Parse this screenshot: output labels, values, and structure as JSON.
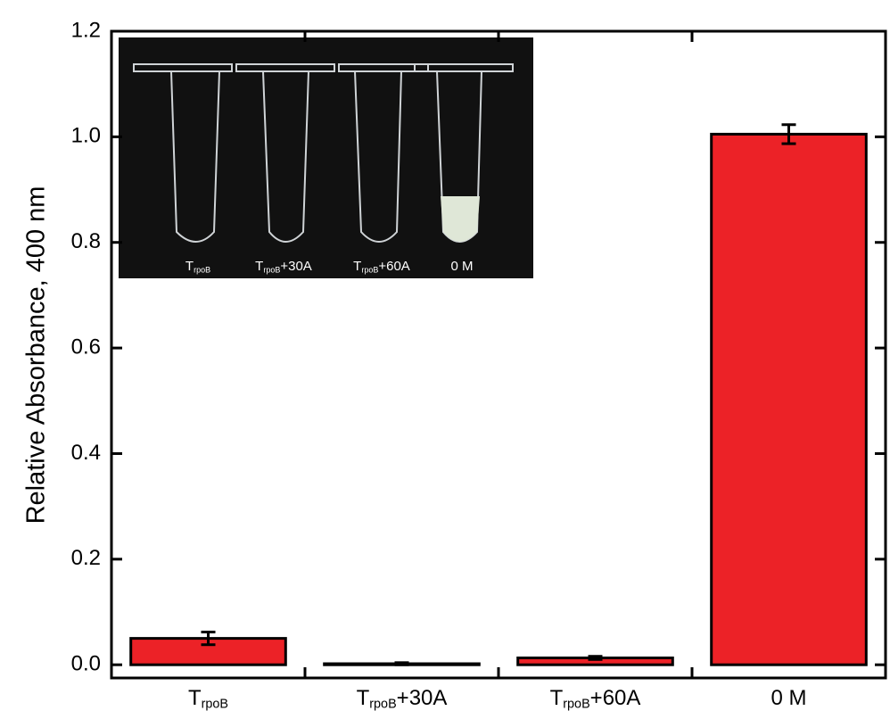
{
  "chart_data": {
    "type": "bar",
    "y_label": "Relative Absorbance, 400 nm",
    "categories": [
      [
        "T",
        "rpoB"
      ],
      [
        "T",
        "rpoB",
        "+30A"
      ],
      [
        "T",
        "rpoB",
        "+60A"
      ],
      [
        "0 M"
      ]
    ],
    "values": [
      0.05,
      0.002,
      0.013,
      1.005
    ],
    "errors": [
      0.012,
      0.002,
      0.003,
      0.018
    ],
    "color": "#ec2227",
    "ylim": [
      -0.025,
      1.2
    ],
    "yticks": [
      {
        "value": 0,
        "label": "0.0"
      },
      0.2,
      0.4,
      0.6,
      0.8,
      {
        "value": 1,
        "label": "1.0"
      },
      1.2
    ],
    "inset_labels": [
      [
        "T",
        "rpoB"
      ],
      [
        "T",
        "rpoB",
        "+30A"
      ],
      [
        "T",
        "rpoB",
        "+60A"
      ],
      [
        "0 M"
      ]
    ]
  }
}
